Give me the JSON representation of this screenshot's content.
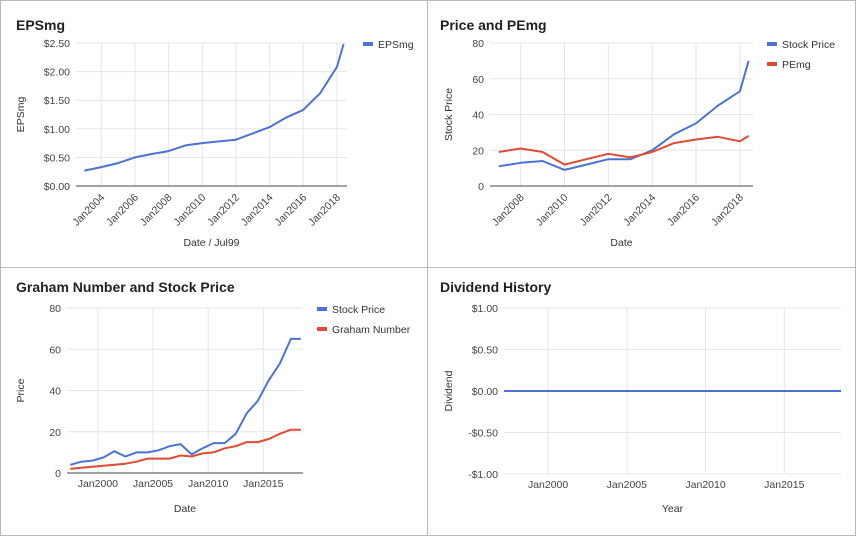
{
  "chart_data": [
    {
      "id": "eps",
      "type": "line",
      "title": "EPSmg",
      "xlabel": "Date / Jul99",
      "ylabel": "EPSmg",
      "ylim": [
        0,
        2.5
      ],
      "yticks": [
        0,
        0.5,
        1.0,
        1.5,
        2.0,
        2.5
      ],
      "ytick_labels": [
        "$0.00",
        "$0.50",
        "$1.00",
        "$1.50",
        "$2.00",
        "$2.50"
      ],
      "xlim": [
        2002.5,
        2018.6
      ],
      "xticks": [
        2004,
        2006,
        2008,
        2010,
        2012,
        2014,
        2016,
        2018
      ],
      "xtick_labels": [
        "Jan2004",
        "Jan2006",
        "Jan2008",
        "Jan2010",
        "Jan2012",
        "Jan2014",
        "Jan2016",
        "Jan2018"
      ],
      "rotated_x_labels": true,
      "grid": true,
      "legend_position": "top-right",
      "series": [
        {
          "name": "EPSmg",
          "color": "#4a74d4",
          "x": [
            2003.0,
            2004.0,
            2005.0,
            2006.0,
            2007.0,
            2008.0,
            2009.0,
            2010.0,
            2011.0,
            2012.0,
            2013.0,
            2014.0,
            2015.0,
            2016.0,
            2017.0,
            2018.0,
            2018.4
          ],
          "y": [
            0.27,
            0.33,
            0.4,
            0.5,
            0.56,
            0.61,
            0.71,
            0.75,
            0.78,
            0.81,
            0.92,
            1.03,
            1.2,
            1.33,
            1.62,
            2.08,
            2.48
          ]
        }
      ]
    },
    {
      "id": "pe",
      "type": "line",
      "title": "Price and PEmg",
      "xlabel": "Date",
      "ylabel": "Stock Price",
      "ylim": [
        0,
        80
      ],
      "yticks": [
        0,
        20,
        40,
        60,
        80
      ],
      "ytick_labels": [
        "0",
        "20",
        "40",
        "60",
        "80"
      ],
      "xlim": [
        2006.6,
        2018.6
      ],
      "xticks": [
        2008,
        2010,
        2012,
        2014,
        2016,
        2018
      ],
      "xtick_labels": [
        "Jan2008",
        "Jan2010",
        "Jan2012",
        "Jan2014",
        "Jan2016",
        "Jan2018"
      ],
      "rotated_x_labels": true,
      "grid": true,
      "legend_position": "top-right",
      "series": [
        {
          "name": "Stock Price",
          "color": "#4a74d4",
          "x": [
            2007.0,
            2008.0,
            2009.0,
            2010.0,
            2011.0,
            2012.0,
            2013.0,
            2014.0,
            2015.0,
            2016.0,
            2017.0,
            2018.0,
            2018.4
          ],
          "y": [
            11,
            13,
            14,
            9,
            12,
            15,
            15,
            20,
            29,
            35,
            45,
            53,
            70
          ]
        },
        {
          "name": "PEmg",
          "color": "#e04b31",
          "x": [
            2007.0,
            2008.0,
            2009.0,
            2010.0,
            2011.0,
            2012.0,
            2013.0,
            2014.0,
            2015.0,
            2016.0,
            2017.0,
            2018.0,
            2018.4
          ],
          "y": [
            19,
            21,
            19,
            12,
            15,
            18,
            16,
            19,
            24,
            26,
            27.5,
            25,
            28
          ]
        }
      ]
    },
    {
      "id": "graham",
      "type": "line",
      "title": "Graham Number and Stock Price",
      "xlabel": "Date",
      "ylabel": "Price",
      "ylim": [
        0,
        80
      ],
      "yticks": [
        0,
        20,
        40,
        60,
        80
      ],
      "ytick_labels": [
        "0",
        "20",
        "40",
        "60",
        "80"
      ],
      "xlim": [
        1997.2,
        2018.6
      ],
      "xticks": [
        2000,
        2005,
        2010,
        2015
      ],
      "xtick_labels": [
        "Jan2000",
        "Jan2005",
        "Jan2010",
        "Jan2015"
      ],
      "rotated_x_labels": false,
      "grid": true,
      "legend_position": "top-right",
      "series": [
        {
          "name": "Stock Price",
          "color": "#4a74d4",
          "x": [
            1997.5,
            1998.5,
            1999.5,
            2000.5,
            2001.5,
            2002.5,
            2003.5,
            2004.5,
            2005.5,
            2006.5,
            2007.5,
            2008.5,
            2009.5,
            2010.5,
            2011.5,
            2012.5,
            2013.5,
            2014.5,
            2015.5,
            2016.5,
            2017.5,
            2018.4
          ],
          "y": [
            4,
            5.5,
            6,
            7.5,
            10.5,
            8,
            10,
            10,
            11,
            13,
            14,
            9,
            12,
            14.5,
            14.5,
            19,
            29,
            35,
            45,
            53,
            65,
            65
          ]
        },
        {
          "name": "Graham Number",
          "color": "#e04b31",
          "x": [
            1997.5,
            1998.5,
            1999.5,
            2000.5,
            2001.5,
            2002.5,
            2003.5,
            2004.5,
            2005.5,
            2006.5,
            2007.5,
            2008.5,
            2009.5,
            2010.5,
            2011.5,
            2012.5,
            2013.5,
            2014.5,
            2015.5,
            2016.5,
            2017.5,
            2018.4
          ],
          "y": [
            2,
            2.5,
            3,
            3.5,
            4,
            4.5,
            5.5,
            7,
            7,
            7,
            8.5,
            8,
            9.5,
            10,
            12,
            13,
            15,
            15,
            16.5,
            19,
            21,
            21
          ]
        }
      ]
    },
    {
      "id": "dividend",
      "type": "line",
      "title": "Dividend History",
      "xlabel": "Year",
      "ylabel": "Dividend",
      "ylim": [
        -1,
        1
      ],
      "yticks": [
        -1,
        -0.5,
        0,
        0.5,
        1
      ],
      "ytick_labels": [
        "-$1.00",
        "-$0.50",
        "$0.00",
        "$0.50",
        "$1.00"
      ],
      "xlim": [
        1997.2,
        2018.6
      ],
      "xticks": [
        2000,
        2005,
        2010,
        2015
      ],
      "xtick_labels": [
        "Jan2000",
        "Jan2005",
        "Jan2010",
        "Jan2015"
      ],
      "rotated_x_labels": false,
      "grid": true,
      "legend_position": "none",
      "series": [
        {
          "name": "Dividend",
          "color": "#4a74d4",
          "x": [
            1997.2,
            2018.6
          ],
          "y": [
            0,
            0
          ]
        }
      ]
    }
  ]
}
